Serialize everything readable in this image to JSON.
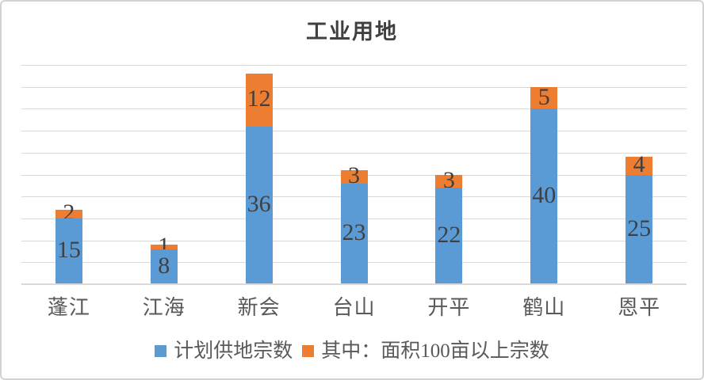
{
  "title": "工业用地",
  "chart_data": {
    "type": "bar",
    "stacked": true,
    "title": "工业用地",
    "categories": [
      "蓬江",
      "江海",
      "新会",
      "台山",
      "开平",
      "鹤山",
      "恩平"
    ],
    "series": [
      {
        "name": "计划供地宗数",
        "color": "#5B9BD5",
        "values": [
          15,
          8,
          36,
          23,
          22,
          40,
          25
        ]
      },
      {
        "name": "其中：面积100亩以上宗数",
        "color": "#ED7D31",
        "values": [
          2,
          1,
          12,
          3,
          3,
          5,
          4
        ]
      }
    ],
    "xlabel": "",
    "ylabel": "",
    "ylim": [
      0,
      50
    ],
    "grid": true,
    "grid_step": 5,
    "y_axis_tick_labels": false,
    "legend_position": "bottom",
    "data_labels": "center"
  },
  "style": {
    "background": "#FFFFFF",
    "frame_border": "#D2D2D2",
    "grid_color": "#D9D9D9",
    "axis_line_color": "#D9D9D9",
    "title_color": "#404040",
    "data_label_color": "#404040",
    "axis_label_color": "#595959",
    "legend_text_color": "#595959"
  }
}
